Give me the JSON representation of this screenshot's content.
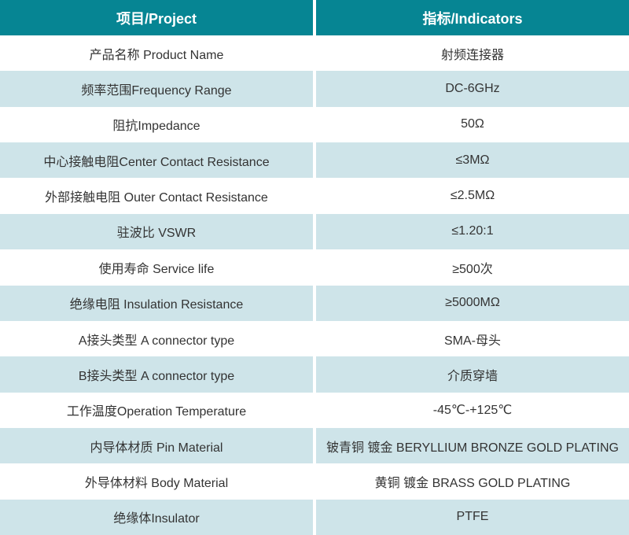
{
  "table": {
    "columns": [
      "项目/Project",
      "指标/Indicators"
    ],
    "rows": [
      {
        "project": "产品名称 Product Name",
        "indicator": "射频连接器"
      },
      {
        "project": "频率范围Frequency Range",
        "indicator": "DC-6GHz"
      },
      {
        "project": "阻抗Impedance",
        "indicator": "50Ω"
      },
      {
        "project": "中心接触电阻Center Contact Resistance",
        "indicator": "≤3MΩ"
      },
      {
        "project": "外部接触电阻 Outer Contact Resistance",
        "indicator": "≤2.5MΩ"
      },
      {
        "project": "驻波比 VSWR",
        "indicator": "≤1.20:1"
      },
      {
        "project": "使用寿命 Service life",
        "indicator": "≥500次"
      },
      {
        "project": "绝缘电阻 Insulation Resistance",
        "indicator": "≥5000MΩ"
      },
      {
        "project": "A接头类型 A connector type",
        "indicator": "SMA-母头"
      },
      {
        "project": "B接头类型 A connector type",
        "indicator": "介质穿墙"
      },
      {
        "project": "工作温度Operation Temperature",
        "indicator": "-45℃-+125℃"
      },
      {
        "project": "内导体材质 Pin Material",
        "indicator": "铍青铜 镀金 BERYLLIUM BRONZE GOLD PLATING"
      },
      {
        "project": "外导体材料 Body Material",
        "indicator": "黄铜 镀金 BRASS GOLD PLATING"
      },
      {
        "project": "绝缘体Insulator",
        "indicator": "PTFE"
      }
    ],
    "colors": {
      "header_bg": "#068593",
      "header_text": "#ffffff",
      "row_bg": "#ffffff",
      "row_alt_bg": "#cee4e9",
      "divider": "#ffffff",
      "text": "#333333"
    }
  }
}
